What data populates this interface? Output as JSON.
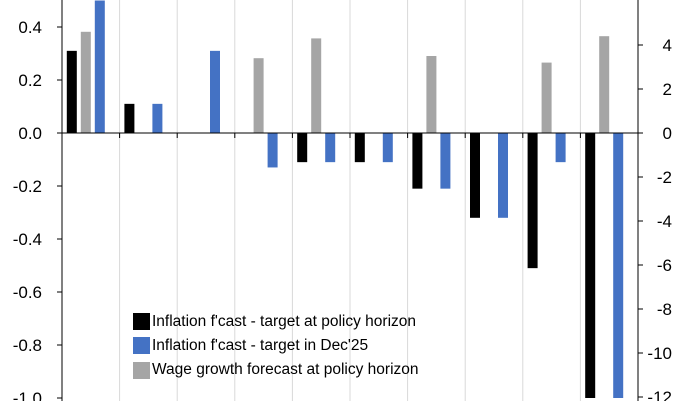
{
  "chart_data": {
    "type": "bar",
    "title": "",
    "xlabel": "",
    "ylabel": "",
    "categories": [
      "",
      "",
      "",
      "",
      "",
      "",
      "",
      "",
      "",
      ""
    ],
    "series": [
      {
        "name": "Inflation f'cast - target at policy horizon",
        "axis": "left",
        "color": "#000000",
        "values": [
          0.31,
          0.11,
          null,
          null,
          -0.11,
          -0.11,
          -0.21,
          -0.32,
          -0.51,
          -1.0
        ]
      },
      {
        "name": "Inflation f'cast - target in Dec'25",
        "axis": "left",
        "color": "#4472C4",
        "values": [
          0.5,
          0.11,
          0.31,
          -0.13,
          -0.11,
          -0.11,
          -0.21,
          -0.32,
          -0.11,
          -1.0
        ]
      },
      {
        "name": "Wage growth forecast at policy horizon",
        "axis": "right",
        "color": "#A5A5A5",
        "values": [
          4.6,
          null,
          null,
          3.4,
          4.3,
          null,
          3.5,
          null,
          3.2,
          4.4
        ]
      }
    ],
    "left_axis": {
      "ylim": [
        -1.0,
        0.5
      ],
      "ticks": [
        -1.0,
        -0.8,
        -0.6,
        -0.4,
        -0.2,
        0.0,
        0.2,
        0.4
      ],
      "tick_labels": [
        "-1.0",
        "-0.8",
        "-0.6",
        "-0.4",
        "-0.2",
        "0.0",
        "0.2",
        "0.4"
      ]
    },
    "right_axis": {
      "ylim": [
        -12,
        6
      ],
      "ticks": [
        -12,
        -10,
        -8,
        -6,
        -4,
        -2,
        0,
        2,
        4
      ],
      "tick_labels": [
        "-12",
        "-10",
        "-8",
        "-6",
        "-4",
        "-2",
        "0",
        "2",
        "4"
      ]
    },
    "grid": "vertical",
    "legend_position": "bottom-left"
  }
}
